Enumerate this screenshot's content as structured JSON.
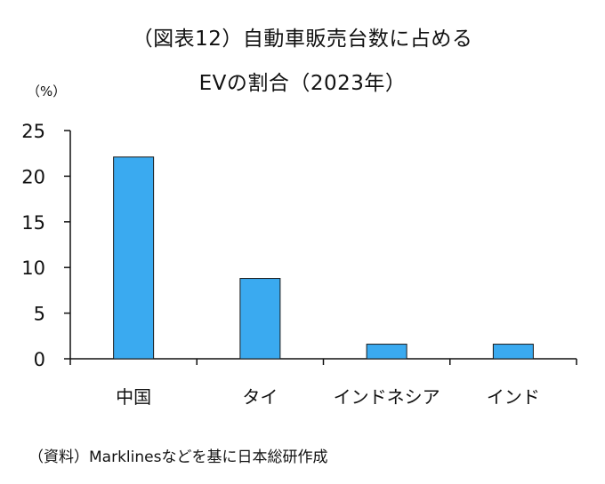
{
  "chart_data": {
    "type": "bar",
    "title": "（図表12）自動車販売台数に占める",
    "subtitle": "EVの割合（2023年）",
    "ylabel": "（%）",
    "xlabel": "",
    "categories": [
      "中国",
      "タイ",
      "インドネシア",
      "インド"
    ],
    "values": [
      22.1,
      8.8,
      1.6,
      1.6
    ],
    "ylim": [
      0,
      25
    ],
    "yticks": [
      0,
      5,
      10,
      15,
      20,
      25
    ],
    "grid": false,
    "legend": "none",
    "bar_color": "#3aaaf0",
    "bar_edge_color": "#1a1a1a"
  },
  "source": "（資料）Marklinesなどを基に日本総研作成"
}
